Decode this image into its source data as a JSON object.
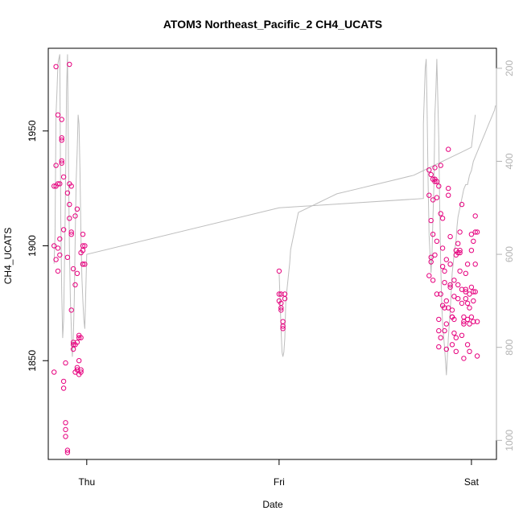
{
  "chart_data": {
    "type": "scatter",
    "title": "ATOM3 Northeast_Pacific_2 CH4_UCATS",
    "xlabel": "Date",
    "ylabel": "CH4_UCATS",
    "x_ticks": [
      {
        "label": "Thu",
        "day": 0
      },
      {
        "label": "Fri",
        "day": 1
      },
      {
        "label": "Sat",
        "day": 2
      }
    ],
    "xlim": [
      -0.2,
      2.13
    ],
    "ylim": [
      1807,
      1986
    ],
    "y_ticks": [
      1850,
      1900,
      1950
    ],
    "y2_label": "",
    "y2_ticks": [
      200,
      400,
      600,
      800,
      1000
    ],
    "y2_lim": [
      157,
      1041
    ],
    "y2_reversed": true,
    "colors": {
      "points": "#e6007e",
      "line": "#bebebe"
    },
    "series": [
      {
        "kind": "points",
        "axis": "left",
        "x": [
          -0.17,
          -0.17,
          -0.17,
          -0.16,
          -0.16,
          -0.16,
          -0.16,
          -0.15,
          -0.15,
          -0.15,
          -0.15,
          -0.14,
          -0.14,
          -0.14,
          -0.13,
          -0.13,
          -0.13,
          -0.13,
          -0.13,
          -0.12,
          -0.12,
          -0.12,
          -0.12,
          -0.11,
          -0.11,
          -0.11,
          -0.11,
          -0.1,
          -0.1,
          -0.1,
          -0.1,
          -0.09,
          -0.09,
          -0.09,
          -0.09,
          -0.08,
          -0.08,
          -0.08,
          -0.08,
          -0.07,
          -0.07,
          -0.07,
          -0.07,
          -0.06,
          -0.06,
          -0.06,
          -0.06,
          -0.05,
          -0.05,
          -0.05,
          -0.05,
          -0.05,
          -0.04,
          -0.04,
          -0.04,
          -0.04,
          -0.03,
          -0.03,
          -0.03,
          -0.03,
          -0.02,
          -0.02,
          -0.02,
          -0.02,
          -0.02,
          -0.01,
          -0.01
        ],
        "y": [
          1845,
          1900,
          1926,
          1894,
          1926,
          1935,
          1978,
          1899,
          1927,
          1957,
          1889,
          1896,
          1903,
          1927,
          1936,
          1947,
          1955,
          1946,
          1937,
          1930,
          1907,
          1838,
          1841,
          1849,
          1823,
          1820,
          1817,
          1811,
          1810,
          1895,
          1923,
          1918,
          1979,
          1927,
          1912,
          1905,
          1906,
          1926,
          1872,
          1890,
          1857,
          1855,
          1858,
          1857,
          1883,
          1845,
          1913,
          1916,
          1846,
          1847,
          1858,
          1888,
          1844,
          1850,
          1861,
          1860,
          1860,
          1846,
          1845,
          1897,
          1900,
          1892,
          1892,
          1898,
          1905,
          1900,
          1892
        ]
      },
      {
        "kind": "points",
        "axis": "left",
        "x": [
          1.0,
          1.0,
          1.0,
          1.01,
          1.01,
          1.01,
          1.01,
          1.02,
          1.02,
          1.02,
          1.03,
          1.03
        ],
        "y": [
          1889,
          1879,
          1876,
          1875,
          1879,
          1873,
          1872,
          1865,
          1864,
          1867,
          1877,
          1879
        ]
      },
      {
        "kind": "points",
        "axis": "left",
        "x": [
          1.78,
          1.78,
          1.78,
          1.79,
          1.79,
          1.79,
          1.79,
          1.8,
          1.8,
          1.8,
          1.8,
          1.81,
          1.81,
          1.81,
          1.81,
          1.82,
          1.82,
          1.82,
          1.82,
          1.83,
          1.83,
          1.83,
          1.83,
          1.84,
          1.84,
          1.84,
          1.84,
          1.85,
          1.85,
          1.85,
          1.85,
          1.86,
          1.86,
          1.86,
          1.86,
          1.87,
          1.87,
          1.87,
          1.87,
          1.88,
          1.88,
          1.88,
          1.88,
          1.89,
          1.89,
          1.89,
          1.89,
          1.9,
          1.9,
          1.9,
          1.9,
          1.91,
          1.91,
          1.91,
          1.91,
          1.92,
          1.92,
          1.92,
          1.92,
          1.93,
          1.93,
          1.93,
          1.93,
          1.94,
          1.94,
          1.94,
          1.94,
          1.95,
          1.95,
          1.95,
          1.95,
          1.96,
          1.96,
          1.96,
          1.96,
          1.97,
          1.97,
          1.97,
          1.97,
          1.98,
          1.98,
          1.98,
          1.98,
          1.99,
          1.99,
          1.99,
          1.99,
          2.0,
          2.0,
          2.0,
          2.0,
          2.01,
          2.01,
          2.01,
          2.01,
          2.02,
          2.02,
          2.02,
          2.02,
          2.03,
          2.03,
          2.03
        ],
        "y": [
          1933,
          1922,
          1887,
          1893,
          1931,
          1911,
          1895,
          1885,
          1905,
          1929,
          1920,
          1934,
          1929,
          1928,
          1896,
          1921,
          1928,
          1902,
          1879,
          1863,
          1856,
          1868,
          1926,
          1935,
          1914,
          1879,
          1860,
          1874,
          1899,
          1912,
          1891,
          1884,
          1889,
          1873,
          1863,
          1855,
          1866,
          1876,
          1894,
          1922,
          1873,
          1942,
          1925,
          1904,
          1882,
          1892,
          1883,
          1857,
          1872,
          1869,
          1869,
          1862,
          1878,
          1885,
          1868,
          1860,
          1854,
          1898,
          1896,
          1883,
          1877,
          1901,
          1897,
          1897,
          1906,
          1898,
          1889,
          1918,
          1875,
          1881,
          1861,
          1869,
          1851,
          1866,
          1867,
          1877,
          1880,
          1881,
          1888,
          1892,
          1868,
          1857,
          1875,
          1854,
          1879,
          1873,
          1866,
          1898,
          1905,
          1882,
          1869,
          1867,
          1880,
          1876,
          1902,
          1906,
          1892,
          1880,
          1913,
          1906,
          1867,
          1852
        ]
      },
      {
        "kind": "line",
        "axis": "right",
        "x": [
          -0.17,
          -0.165,
          -0.16,
          -0.155,
          -0.15,
          -0.14,
          -0.135,
          -0.13,
          -0.125,
          -0.12,
          -0.115,
          -0.11,
          -0.105,
          -0.1,
          -0.095,
          -0.09,
          -0.085,
          -0.08,
          -0.075,
          -0.07,
          -0.065,
          -0.06,
          -0.055,
          -0.05,
          -0.045,
          -0.04,
          -0.035,
          -0.03,
          -0.025,
          -0.02,
          -0.015,
          -0.01,
          0.0,
          1.0,
          1.75,
          1.75,
          1.76,
          1.765,
          1.77,
          1.775,
          1.78,
          1.785,
          1.79,
          1.795,
          1.8,
          1.805,
          1.81,
          1.815,
          1.82,
          1.83,
          1.835,
          1.84,
          1.845,
          1.85,
          1.86,
          1.865,
          1.87,
          1.88,
          1.89,
          1.895,
          1.9,
          1.91,
          1.92,
          1.925,
          1.93,
          1.94,
          1.95,
          1.955,
          1.96,
          1.97,
          1.98,
          1.985,
          1.99,
          2.0,
          2.005,
          2.01,
          2.02,
          2.03,
          2.04,
          2.05,
          2.06,
          2.07,
          2.08,
          2.09,
          2.1,
          2.11,
          2.12,
          2.125
        ],
        "y": [
          620,
          560,
          300,
          250,
          190,
          170,
          520,
          680,
          780,
          740,
          600,
          450,
          250,
          170,
          400,
          590,
          700,
          760,
          820,
          780,
          700,
          560,
          440,
          380,
          300,
          320,
          420,
          560,
          650,
          700,
          740,
          760,
          600,
          500,
          480,
          320,
          200,
          180,
          300,
          450,
          560,
          600,
          640,
          600,
          520,
          450,
          300,
          250,
          180,
          350,
          500,
          620,
          700,
          750,
          800,
          830,
          860,
          780,
          720,
          680,
          640,
          600,
          570,
          540,
          520,
          500,
          480,
          470,
          460,
          450,
          450,
          440,
          430,
          420,
          410,
          400,
          390,
          380,
          370,
          360,
          350,
          340,
          330,
          320,
          310,
          300,
          290,
          280
        ]
      },
      {
        "kind": "line",
        "axis": "right",
        "x": [
          1.0,
          1.005,
          1.01,
          1.015,
          1.02,
          1.025,
          1.03,
          1.035,
          1.04,
          1.045,
          1.05,
          1.055,
          1.06,
          1.065,
          1.07,
          1.075,
          1.08,
          1.085,
          1.09,
          1.095,
          1.1,
          1.15,
          1.2,
          1.25,
          1.3,
          1.4,
          1.5,
          1.6,
          1.7,
          1.75,
          1.8,
          1.85,
          1.9,
          1.95,
          2.0,
          2.02
        ],
        "y": [
          640,
          700,
          760,
          810,
          820,
          810,
          780,
          700,
          680,
          660,
          640,
          620,
          590,
          580,
          570,
          560,
          550,
          540,
          530,
          520,
          510,
          500,
          490,
          480,
          470,
          460,
          450,
          440,
          430,
          420,
          410,
          400,
          390,
          380,
          370,
          300
        ]
      }
    ]
  }
}
